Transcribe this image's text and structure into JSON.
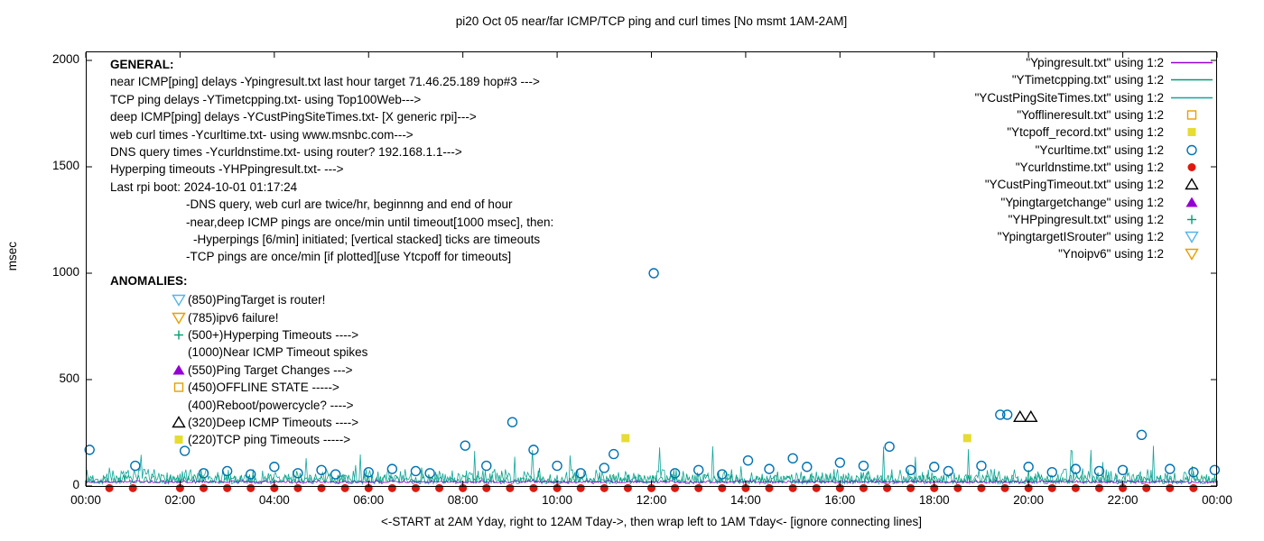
{
  "general": {
    "heading": "GENERAL:",
    "lines": [
      {
        "text": "near ICMP[ping] delays -Ypingresult.txt last hour target 71.46.25.189 hop#3 --->",
        "indent": 0
      },
      {
        "text": "TCP ping delays -YTimetcpping.txt- using Top100Web--->",
        "indent": 0
      },
      {
        "text": "deep ICMP[ping] delays -YCustPingSiteTimes.txt- [X generic rpi]--->",
        "indent": 0
      },
      {
        "text": "web curl times -Ycurltime.txt- using www.msnbc.com--->",
        "indent": 0
      },
      {
        "text": "DNS query times -Ycurldnstime.txt- using router? 192.168.1.1--->",
        "indent": 0
      },
      {
        "text": "Hyperping timeouts -YHPpingresult.txt- --->",
        "indent": 0
      },
      {
        "text": "Last rpi boot: 2024-10-01 01:17:24",
        "indent": 0
      },
      {
        "text": "-DNS query, web curl are twice/hr, beginnng and end of hour",
        "indent": 1
      },
      {
        "text": "-near,deep ICMP pings are once/min until timeout[1000 msec], then:",
        "indent": 1
      },
      {
        "text": "-Hyperpings [6/min] initiated; [vertical stacked] ticks are timeouts",
        "indent": 2
      },
      {
        "text": "-TCP pings are once/min [if plotted][use Ytcpoff for timeouts]",
        "indent": 1
      }
    ]
  },
  "anomalies": {
    "heading": "ANOMALIES:",
    "items": [
      {
        "marker": "tri-down-open",
        "color": "#56B4E9",
        "text": "(850)PingTarget is router!"
      },
      {
        "marker": "tri-down-open",
        "color": "#E69F00",
        "text": "(785)ipv6 failure!"
      },
      {
        "marker": "plus",
        "color": "#009E73",
        "text": "(500+)Hyperping Timeouts ---->"
      },
      {
        "marker": "none",
        "color": "#000000",
        "text": "(1000)Near ICMP Timeout spikes"
      },
      {
        "marker": "triangle-filled",
        "color": "#9400D3",
        "text": "(550)Ping Target Changes --->"
      },
      {
        "marker": "square-open",
        "color": "#E69F00",
        "text": "(450)OFFLINE STATE ----->"
      },
      {
        "marker": "none",
        "color": "#000000",
        "text": "(400)Reboot/powercycle? ---->"
      },
      {
        "marker": "triangle-open",
        "color": "#000000",
        "text": "(320)Deep ICMP Timeouts ---->"
      },
      {
        "marker": "square-filled",
        "color": "#E6DC32",
        "text": "(220)TCP ping Timeouts ----->"
      }
    ]
  },
  "legend": [
    {
      "label": "\"Ypingresult.txt\" using 1:2",
      "marker": "line",
      "color": "#9400D3"
    },
    {
      "label": "\"YTimetcpping.txt\" using 1:2",
      "marker": "line",
      "color": "#009E73"
    },
    {
      "label": "\"YCustPingSiteTimes.txt\" using 1:2",
      "marker": "line",
      "color": "#10A699"
    },
    {
      "label": "\"Yofflineresult.txt\" using 1:2",
      "marker": "square-open",
      "color": "#E69F00"
    },
    {
      "label": "\"Ytcpoff_record.txt\" using 1:2",
      "marker": "square-filled",
      "color": "#E6DC32"
    },
    {
      "label": "\"Ycurltime.txt\" using 1:2",
      "marker": "circle-open",
      "color": "#0072B2"
    },
    {
      "label": "\"Ycurldnstime.txt\" using 1:2",
      "marker": "circle-filled",
      "color": "#DD1A10"
    },
    {
      "label": "\"YCustPingTimeout.txt\" using 1:2",
      "marker": "triangle-open",
      "color": "#000000"
    },
    {
      "label": "\"Ypingtargetchange\" using 1:2",
      "marker": "triangle-filled",
      "color": "#9400D3"
    },
    {
      "label": "\"YHPpingresult.txt\" using 1:2",
      "marker": "plus",
      "color": "#009E73"
    },
    {
      "label": "\"YpingtargetISrouter\" using 1:2",
      "marker": "tri-down-open",
      "color": "#56B4E9"
    },
    {
      "label": "\"Ynoipv6\" using 1:2",
      "marker": "tri-down-open",
      "color": "#E69F00"
    }
  ],
  "chart_data": {
    "type": "line+scatter",
    "title": "pi20 Oct 05  near/far ICMP/TCP ping and curl times [No msmt 1AM-2AM]",
    "xlabel": "<-START at 2AM Yday, right to 12AM Tday->, then wrap left to 1AM Tday<- [ignore connecting lines]",
    "ylabel": "msec",
    "x_unit": "hours",
    "xlim_hours": [
      0,
      24
    ],
    "ylim": [
      0,
      2045
    ],
    "x_ticks": [
      "00:00",
      "02:00",
      "04:00",
      "06:00",
      "08:00",
      "10:00",
      "12:00",
      "14:00",
      "16:00",
      "18:00",
      "20:00",
      "22:00",
      "00:00"
    ],
    "y_ticks": [
      0,
      500,
      1000,
      1500,
      2000
    ],
    "series": [
      {
        "name": "YTimetcpping.txt",
        "type": "noise-line",
        "color": "#009E73",
        "base": 15,
        "jitter": 40,
        "spike_prob": 0.015,
        "spike_max": 95,
        "points_per_hour": 40,
        "seed": 13
      },
      {
        "name": "YCustPingSiteTimes.txt",
        "type": "noise-line",
        "color": "#10A699",
        "base": 10,
        "jitter": 70,
        "spike_prob": 0.03,
        "spike_max": 190,
        "points_per_hour": 40,
        "seed": 7
      },
      {
        "name": "Ypingresult.txt",
        "type": "noise-line",
        "color": "#9400D3",
        "base": 16,
        "jitter": 10,
        "spike_prob": 0,
        "spike_max": 0,
        "points_per_hour": 40,
        "seed": 3
      },
      {
        "name": "Ycurltime.txt",
        "type": "points",
        "marker": "circle-open",
        "color": "#0072B2",
        "points": [
          [
            0.08,
            170
          ],
          [
            1.05,
            95
          ],
          [
            2.1,
            165
          ],
          [
            2.5,
            60
          ],
          [
            3.0,
            70
          ],
          [
            3.5,
            55
          ],
          [
            4.0,
            90
          ],
          [
            4.5,
            60
          ],
          [
            5.0,
            75
          ],
          [
            5.3,
            55
          ],
          [
            6.0,
            65
          ],
          [
            6.5,
            80
          ],
          [
            7.0,
            70
          ],
          [
            7.3,
            60
          ],
          [
            8.05,
            190
          ],
          [
            8.5,
            95
          ],
          [
            9.05,
            300
          ],
          [
            9.5,
            170
          ],
          [
            10.0,
            95
          ],
          [
            10.5,
            60
          ],
          [
            11.0,
            85
          ],
          [
            11.2,
            150
          ],
          [
            12.05,
            1000
          ],
          [
            12.5,
            60
          ],
          [
            13.0,
            75
          ],
          [
            13.5,
            55
          ],
          [
            14.05,
            120
          ],
          [
            14.5,
            80
          ],
          [
            15.0,
            130
          ],
          [
            15.3,
            90
          ],
          [
            16.0,
            110
          ],
          [
            16.5,
            95
          ],
          [
            17.05,
            185
          ],
          [
            17.5,
            75
          ],
          [
            18.0,
            90
          ],
          [
            18.3,
            70
          ],
          [
            19.0,
            95
          ],
          [
            19.4,
            335
          ],
          [
            19.55,
            335
          ],
          [
            20.0,
            90
          ],
          [
            20.5,
            65
          ],
          [
            21.0,
            80
          ],
          [
            21.5,
            70
          ],
          [
            22.0,
            75
          ],
          [
            22.4,
            240
          ],
          [
            23.0,
            80
          ],
          [
            23.5,
            65
          ],
          [
            23.95,
            75
          ]
        ]
      },
      {
        "name": "Ycurldnstime.txt",
        "type": "points",
        "marker": "circle-filled",
        "color": "#DD1A10",
        "points": [
          [
            0.5,
            -10
          ],
          [
            1.0,
            -10
          ],
          [
            2.0,
            -10
          ],
          [
            2.5,
            -10
          ],
          [
            3.0,
            -10
          ],
          [
            3.5,
            -10
          ],
          [
            4.0,
            -10
          ],
          [
            4.5,
            -10
          ],
          [
            5.0,
            -10
          ],
          [
            5.5,
            -10
          ],
          [
            6.0,
            -10
          ],
          [
            6.5,
            -10
          ],
          [
            7.0,
            -10
          ],
          [
            7.5,
            -10
          ],
          [
            8.0,
            -10
          ],
          [
            8.5,
            -10
          ],
          [
            9.0,
            -10
          ],
          [
            9.5,
            -10
          ],
          [
            10.0,
            -10
          ],
          [
            10.5,
            -10
          ],
          [
            11.0,
            -10
          ],
          [
            11.5,
            -10
          ],
          [
            12.0,
            -10
          ],
          [
            12.5,
            -10
          ],
          [
            13.0,
            -10
          ],
          [
            13.5,
            -10
          ],
          [
            14.0,
            -10
          ],
          [
            14.5,
            -10
          ],
          [
            15.0,
            -10
          ],
          [
            15.5,
            -10
          ],
          [
            16.0,
            -10
          ],
          [
            16.5,
            -10
          ],
          [
            17.0,
            -10
          ],
          [
            17.5,
            -10
          ],
          [
            18.0,
            -10
          ],
          [
            18.5,
            -10
          ],
          [
            19.0,
            -10
          ],
          [
            19.5,
            -10
          ],
          [
            20.0,
            -10
          ],
          [
            20.5,
            -10
          ],
          [
            21.0,
            -10
          ],
          [
            21.5,
            -10
          ],
          [
            22.0,
            -10
          ],
          [
            22.5,
            -10
          ],
          [
            23.0,
            -10
          ],
          [
            23.5,
            -10
          ]
        ]
      },
      {
        "name": "Ytcpoff_record.txt",
        "type": "points",
        "marker": "square-filled",
        "color": "#E6DC32",
        "points": [
          [
            11.45,
            225
          ],
          [
            18.7,
            225
          ]
        ]
      },
      {
        "name": "YCustPingTimeout.txt",
        "type": "points",
        "marker": "triangle-open",
        "color": "#000000",
        "points": [
          [
            19.82,
            325
          ],
          [
            20.05,
            325
          ]
        ]
      },
      {
        "name": "Yofflineresult.txt",
        "type": "points",
        "marker": "square-open",
        "color": "#E69F00",
        "points": []
      },
      {
        "name": "Ypingtargetchange",
        "type": "points",
        "marker": "triangle-filled",
        "color": "#9400D3",
        "points": []
      },
      {
        "name": "YHPpingresult.txt",
        "type": "points",
        "marker": "plus",
        "color": "#009E73",
        "points": []
      },
      {
        "name": "YpingtargetISrouter",
        "type": "points",
        "marker": "tri-down-open",
        "color": "#56B4E9",
        "points": []
      },
      {
        "name": "Ynoipv6",
        "type": "points",
        "marker": "tri-down-open",
        "color": "#E69F00",
        "points": []
      }
    ]
  }
}
